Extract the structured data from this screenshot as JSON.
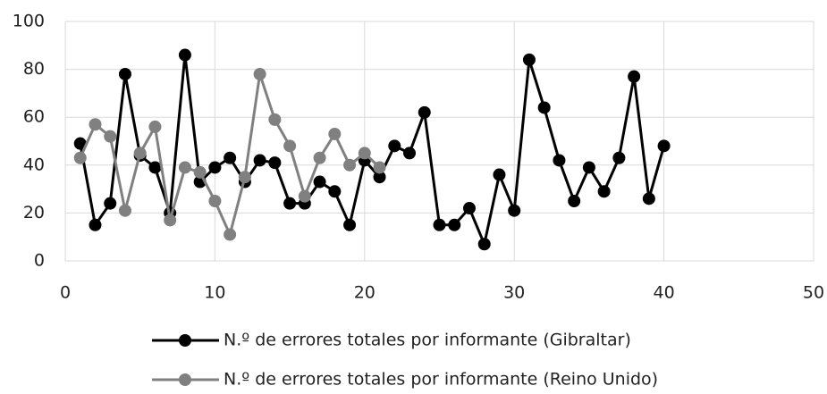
{
  "chart_data": {
    "type": "line",
    "xlim": [
      0,
      50
    ],
    "xticks": [
      0,
      10,
      20,
      30,
      40,
      50
    ],
    "ylim": [
      0,
      100
    ],
    "yticks": [
      0,
      20,
      40,
      60,
      80,
      100
    ],
    "grid": true,
    "legend": "bottom",
    "series": [
      {
        "name": "N.º de errores totales por informante (Gibraltar)",
        "color": "#000000",
        "x": [
          1,
          2,
          3,
          4,
          5,
          6,
          7,
          8,
          9,
          10,
          11,
          12,
          13,
          14,
          15,
          16,
          17,
          18,
          19,
          20,
          21,
          22,
          23,
          24,
          25,
          26,
          27,
          28,
          29,
          30,
          31,
          32,
          33,
          34,
          35,
          36,
          37,
          38,
          39,
          40
        ],
        "values": [
          49,
          15,
          24,
          78,
          44,
          39,
          20,
          86,
          33,
          39,
          43,
          33,
          42,
          41,
          24,
          24,
          33,
          29,
          15,
          42,
          35,
          48,
          45,
          62,
          15,
          15,
          22,
          7,
          36,
          21,
          84,
          64,
          42,
          25,
          39,
          29,
          43,
          77,
          26,
          48
        ]
      },
      {
        "name": "N.º de errores totales por informante (Reino Unido)",
        "color": "#808080",
        "x": [
          1,
          2,
          3,
          4,
          5,
          6,
          7,
          8,
          9,
          10,
          11,
          12,
          13,
          14,
          15,
          16,
          17,
          18,
          19,
          20,
          21
        ],
        "values": [
          43,
          57,
          52,
          21,
          45,
          56,
          17,
          39,
          37,
          25,
          11,
          35,
          78,
          59,
          48,
          27,
          43,
          53,
          40,
          45,
          39
        ]
      }
    ]
  }
}
